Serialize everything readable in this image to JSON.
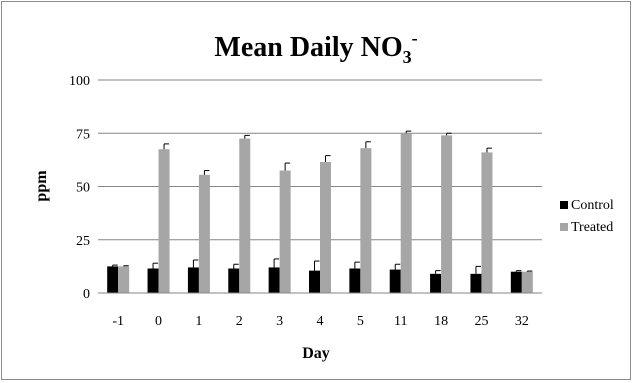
{
  "chart_data": {
    "type": "bar",
    "title": {
      "main": "Mean Daily NO",
      "subscript": "3",
      "superscript": "-"
    },
    "xlabel": "Day",
    "ylabel": "ppm",
    "ylim": [
      0,
      100
    ],
    "yticks": [
      0,
      25,
      50,
      75,
      100
    ],
    "grid": true,
    "legend_position": "right",
    "categories": [
      "-1",
      "0",
      "1",
      "2",
      "3",
      "4",
      "5",
      "11",
      "18",
      "25",
      "32"
    ],
    "series": [
      {
        "name": "Control",
        "color": "#000000",
        "values": [
          12.5,
          11.5,
          12,
          11.5,
          12,
          10.5,
          11.5,
          11,
          9,
          9,
          10
        ],
        "errors": [
          0.6,
          2.5,
          3.5,
          2.0,
          4.0,
          4.5,
          3.0,
          2.5,
          1.5,
          3.5,
          0.5
        ]
      },
      {
        "name": "Treated",
        "color": "#a6a6a6",
        "values": [
          12.5,
          67.5,
          55.5,
          72.5,
          57.5,
          61.5,
          68,
          75,
          74,
          66,
          10
        ],
        "errors": [
          0.3,
          2.5,
          2.0,
          1.5,
          3.5,
          3.0,
          3.0,
          1.0,
          1.0,
          2.0,
          0.3
        ]
      }
    ]
  }
}
